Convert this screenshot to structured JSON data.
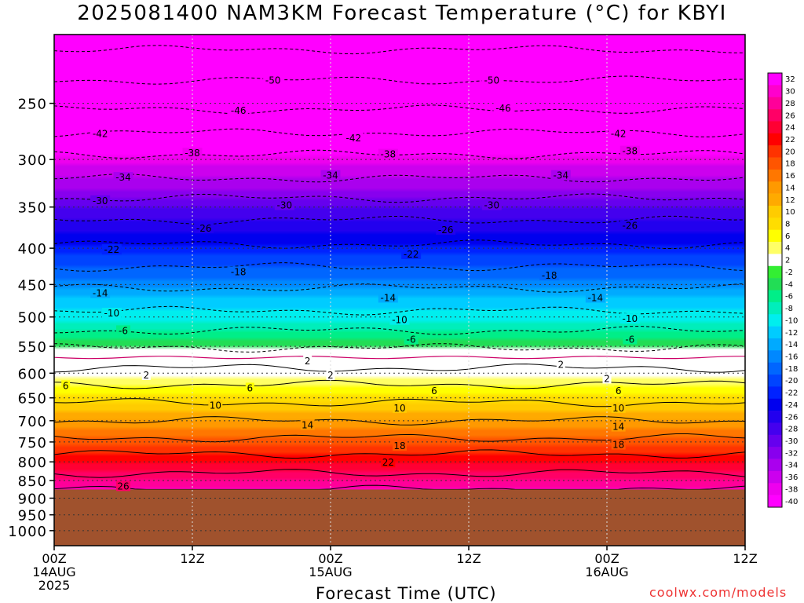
{
  "chart_data": {
    "type": "heatmap",
    "title": "2025081400 NAM3KM Forecast Temperature (°C) for KBYI",
    "xlabel": "Forecast Time (UTC)",
    "ylabel": "",
    "credit": "coolwx.com/models",
    "x_ticks": [
      {
        "hour": 0,
        "lines": [
          "00Z",
          "14AUG",
          "2025"
        ]
      },
      {
        "hour": 12,
        "lines": [
          "12Z"
        ]
      },
      {
        "hour": 24,
        "lines": [
          "00Z",
          "15AUG"
        ]
      },
      {
        "hour": 36,
        "lines": [
          "12Z"
        ]
      },
      {
        "hour": 48,
        "lines": [
          "00Z",
          "16AUG"
        ]
      },
      {
        "hour": 60,
        "lines": [
          "12Z"
        ]
      }
    ],
    "xlim_hours": [
      0,
      60
    ],
    "y_ticks": [
      250,
      300,
      350,
      400,
      450,
      500,
      550,
      600,
      650,
      700,
      750,
      800,
      850,
      900,
      950,
      1000
    ],
    "ylim_hPa": [
      200,
      1050
    ],
    "y_scale": "log-pressure",
    "surface_pressure_hPa": 875,
    "colorbar_levels": [
      32,
      30,
      28,
      26,
      24,
      22,
      20,
      18,
      16,
      14,
      12,
      10,
      8,
      6,
      4,
      2,
      -2,
      -4,
      -6,
      -8,
      -10,
      -12,
      -14,
      -16,
      -18,
      -20,
      -22,
      -24,
      -26,
      -28,
      -30,
      -32,
      -34,
      -36,
      -38,
      -40
    ],
    "colorbar_colors": [
      "#ff00ff",
      "#ff00cc",
      "#ff0099",
      "#ff0066",
      "#ff0033",
      "#ff0000",
      "#ff3300",
      "#ff5500",
      "#ff7700",
      "#ff9900",
      "#ffaa00",
      "#ffcc00",
      "#ffdd00",
      "#ffff00",
      "#ffff66",
      "#ffffff",
      "#33ee33",
      "#22dd55",
      "#00ee88",
      "#00eebb",
      "#00eeee",
      "#00ccff",
      "#00aaff",
      "#0088ff",
      "#0066ff",
      "#0044ff",
      "#0022ff",
      "#0000ee",
      "#2200ee",
      "#4400ee",
      "#6600ee",
      "#8800ee",
      "#aa00ee",
      "#cc00ee",
      "#ee00ee",
      "#ff00ff"
    ],
    "profile": [
      {
        "p": 220,
        "t": -52
      },
      {
        "p": 250,
        "t": -47
      },
      {
        "p": 275,
        "t": -42
      },
      {
        "p": 300,
        "t": -37
      },
      {
        "p": 325,
        "t": -33
      },
      {
        "p": 350,
        "t": -28
      },
      {
        "p": 380,
        "t": -24
      },
      {
        "p": 410,
        "t": -20
      },
      {
        "p": 440,
        "t": -16
      },
      {
        "p": 470,
        "t": -12
      },
      {
        "p": 500,
        "t": -9
      },
      {
        "p": 530,
        "t": -5
      },
      {
        "p": 560,
        "t": -1
      },
      {
        "p": 580,
        "t": 1
      },
      {
        "p": 600,
        "t": 3
      },
      {
        "p": 630,
        "t": 7
      },
      {
        "p": 660,
        "t": 10
      },
      {
        "p": 700,
        "t": 14
      },
      {
        "p": 740,
        "t": 18
      },
      {
        "p": 780,
        "t": 22
      },
      {
        "p": 830,
        "t": 26
      },
      {
        "p": 875,
        "t": 30
      }
    ],
    "isotherm_labels": [
      {
        "t": -50,
        "hour": 19,
        "p": 232
      },
      {
        "t": -50,
        "hour": 38,
        "p": 232
      },
      {
        "t": -46,
        "hour": 16,
        "p": 256
      },
      {
        "t": -46,
        "hour": 39,
        "p": 254
      },
      {
        "t": -42,
        "hour": 4,
        "p": 276
      },
      {
        "t": -42,
        "hour": 26,
        "p": 280
      },
      {
        "t": -42,
        "hour": 49,
        "p": 276
      },
      {
        "t": -38,
        "hour": 12,
        "p": 294
      },
      {
        "t": -38,
        "hour": 29,
        "p": 295
      },
      {
        "t": -38,
        "hour": 50,
        "p": 292
      },
      {
        "t": -34,
        "hour": 6,
        "p": 318
      },
      {
        "t": -34,
        "hour": 24,
        "p": 316
      },
      {
        "t": -34,
        "hour": 44,
        "p": 316
      },
      {
        "t": -30,
        "hour": 4,
        "p": 343
      },
      {
        "t": -30,
        "hour": 20,
        "p": 348
      },
      {
        "t": -30,
        "hour": 38,
        "p": 348
      },
      {
        "t": -26,
        "hour": 13,
        "p": 375
      },
      {
        "t": -26,
        "hour": 34,
        "p": 377
      },
      {
        "t": -26,
        "hour": 50,
        "p": 372
      },
      {
        "t": -22,
        "hour": 5,
        "p": 402
      },
      {
        "t": -22,
        "hour": 31,
        "p": 408
      },
      {
        "t": -18,
        "hour": 16,
        "p": 432
      },
      {
        "t": -18,
        "hour": 43,
        "p": 437
      },
      {
        "t": -14,
        "hour": 4,
        "p": 463
      },
      {
        "t": -14,
        "hour": 29,
        "p": 470
      },
      {
        "t": -14,
        "hour": 47,
        "p": 470
      },
      {
        "t": -10,
        "hour": 5,
        "p": 494
      },
      {
        "t": -10,
        "hour": 30,
        "p": 505
      },
      {
        "t": -10,
        "hour": 50,
        "p": 503
      },
      {
        "t": -6,
        "hour": 6,
        "p": 523
      },
      {
        "t": -6,
        "hour": 31,
        "p": 538
      },
      {
        "t": -6,
        "hour": 50,
        "p": 538
      },
      {
        "t": 2,
        "hour": 22,
        "p": 577
      },
      {
        "t": 2,
        "hour": 44,
        "p": 584
      },
      {
        "t": 2,
        "hour": 8,
        "p": 604
      },
      {
        "t": 2,
        "hour": 24,
        "p": 604
      },
      {
        "t": 2,
        "hour": 48,
        "p": 611
      },
      {
        "t": 6,
        "hour": 1,
        "p": 625
      },
      {
        "t": 6,
        "hour": 17,
        "p": 630
      },
      {
        "t": 6,
        "hour": 33,
        "p": 636
      },
      {
        "t": 6,
        "hour": 49,
        "p": 636
      },
      {
        "t": 10,
        "hour": 14,
        "p": 666
      },
      {
        "t": 10,
        "hour": 30,
        "p": 672
      },
      {
        "t": 10,
        "hour": 49,
        "p": 672
      },
      {
        "t": 14,
        "hour": 22,
        "p": 710
      },
      {
        "t": 14,
        "hour": 49,
        "p": 714
      },
      {
        "t": 18,
        "hour": 30,
        "p": 760
      },
      {
        "t": 18,
        "hour": 49,
        "p": 757
      },
      {
        "t": 22,
        "hour": 29,
        "p": 802
      },
      {
        "t": 26,
        "hour": 6,
        "p": 866
      }
    ]
  }
}
